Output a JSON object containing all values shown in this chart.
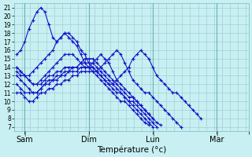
{
  "xlabel": "Température (°c)",
  "bg_color": "#c8f0f2",
  "grid_color": "#a0d0d8",
  "line_color": "#1414c8",
  "ylim": [
    6.5,
    21.5
  ],
  "yticks": [
    7,
    8,
    9,
    10,
    11,
    12,
    13,
    14,
    15,
    16,
    17,
    18,
    19,
    20,
    21
  ],
  "xlim": [
    -8,
    168
  ],
  "xtick_positions": [
    0,
    48,
    96,
    144,
    168
  ],
  "xtick_labels": [
    "Sam",
    "Dim",
    "Lun",
    "Mar",
    ""
  ],
  "day_vlines": [
    0,
    48,
    96,
    144
  ],
  "series": [
    {
      "start": -6,
      "step": 3,
      "values": [
        15.5,
        16.0,
        17.0,
        18.5,
        19.5,
        20.5,
        21.0,
        20.5,
        19.0,
        17.5,
        17.0,
        17.5,
        18.0,
        18.0,
        17.5,
        17.0,
        16.0,
        15.5,
        14.5,
        14.0,
        13.5,
        13.0,
        12.5,
        12.0,
        12.0,
        12.5,
        13.0,
        13.5,
        14.0,
        15.0,
        15.5,
        16.0,
        15.5,
        15.0,
        14.0,
        13.0,
        12.5,
        12.0,
        11.5,
        11.0,
        11.0,
        10.5,
        10.0,
        9.5,
        9.0,
        8.5,
        8.0
      ]
    },
    {
      "start": -6,
      "step": 3,
      "values": [
        14.0,
        13.5,
        13.0,
        13.0,
        13.5,
        14.0,
        14.5,
        15.0,
        15.5,
        16.0,
        17.0,
        17.5,
        18.0,
        17.5,
        17.0,
        16.5,
        15.5,
        14.5,
        14.0,
        13.5,
        13.5,
        14.0,
        14.5,
        15.0,
        15.5,
        16.0,
        15.5,
        14.5,
        13.5,
        12.5,
        12.0,
        11.5,
        11.0,
        11.0,
        10.5,
        10.0,
        9.5,
        9.0,
        8.5,
        8.0,
        7.5,
        7.0
      ]
    },
    {
      "start": -6,
      "step": 3,
      "values": [
        14.0,
        13.5,
        13.0,
        12.5,
        12.0,
        12.0,
        12.5,
        13.0,
        13.5,
        14.0,
        14.5,
        15.0,
        15.5,
        15.5,
        15.5,
        15.0,
        14.5,
        14.0,
        14.0,
        14.5,
        15.0,
        15.5,
        15.0,
        14.5,
        13.5,
        12.5,
        12.0,
        11.5,
        11.0,
        10.5,
        10.0,
        9.5,
        9.0,
        8.5,
        8.0,
        7.5,
        7.2
      ]
    },
    {
      "start": -6,
      "step": 3,
      "values": [
        13.5,
        13.0,
        13.0,
        12.5,
        12.0,
        12.0,
        12.0,
        12.5,
        13.0,
        13.0,
        13.5,
        13.5,
        14.0,
        14.0,
        14.0,
        14.0,
        14.5,
        15.0,
        15.0,
        15.0,
        14.5,
        14.0,
        13.5,
        13.0,
        12.5,
        12.0,
        11.5,
        11.0,
        10.5,
        10.5,
        10.0,
        9.5,
        9.0,
        8.5,
        8.0
      ]
    },
    {
      "start": -6,
      "step": 3,
      "values": [
        13.0,
        12.5,
        12.0,
        11.5,
        11.0,
        11.0,
        11.5,
        12.0,
        12.5,
        12.5,
        13.0,
        13.0,
        13.5,
        13.5,
        14.0,
        14.0,
        14.5,
        14.5,
        14.5,
        14.5,
        14.0,
        13.5,
        13.0,
        12.5,
        12.0,
        11.5,
        11.0,
        10.5,
        10.0,
        10.0,
        9.5,
        9.0,
        8.5,
        8.0,
        7.5,
        7.0
      ]
    },
    {
      "start": -6,
      "step": 3,
      "values": [
        12.0,
        11.5,
        11.0,
        11.0,
        11.0,
        11.0,
        11.5,
        12.0,
        12.0,
        12.5,
        12.5,
        13.0,
        13.0,
        13.5,
        13.5,
        13.5,
        14.0,
        14.0,
        14.0,
        14.0,
        13.5,
        13.0,
        12.5,
        12.0,
        11.5,
        11.0,
        11.0,
        10.5,
        10.0,
        9.5,
        9.0,
        8.5,
        8.0,
        7.5,
        7.0
      ]
    },
    {
      "start": -6,
      "step": 3,
      "values": [
        11.0,
        11.0,
        10.5,
        10.0,
        10.0,
        10.5,
        11.0,
        11.0,
        11.5,
        11.5,
        12.0,
        12.0,
        12.5,
        12.5,
        13.0,
        13.0,
        13.5,
        13.5,
        13.5,
        13.5,
        13.0,
        12.5,
        12.0,
        11.5,
        11.0,
        10.5,
        10.0,
        10.0,
        9.5,
        9.0,
        8.5,
        8.0,
        7.5,
        7.2
      ]
    }
  ]
}
